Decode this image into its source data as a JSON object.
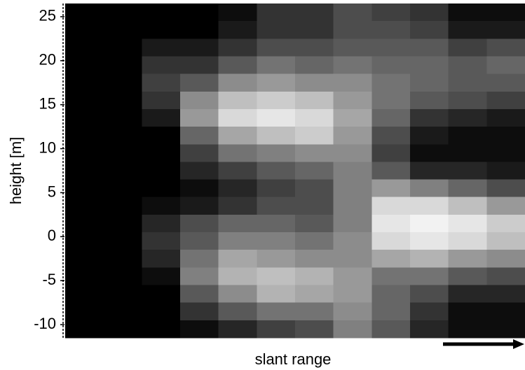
{
  "chart_data": {
    "type": "heatmap",
    "ylabel": "height [m]",
    "xlabel": "slant range",
    "colormap": "gray",
    "zlim": [
      0,
      1
    ],
    "ylim": [
      -11.5,
      26.5
    ],
    "yticks": [
      25,
      20,
      15,
      10,
      5,
      0,
      -5,
      -10
    ],
    "categories": [
      null,
      null,
      null,
      null,
      null,
      null,
      null,
      null,
      null,
      null,
      null,
      null
    ],
    "ybins": [
      26.5,
      24.5,
      22.5,
      20.5,
      18.5,
      16.5,
      14.5,
      12.5,
      10.5,
      8.5,
      6.5,
      4.5,
      2.5,
      0.5,
      -1.5,
      -3.5,
      -5.5,
      -7.5,
      -9.5,
      -11.5
    ],
    "z": [
      [
        0,
        0,
        0,
        0,
        0.05,
        0.2,
        0.2,
        0.3,
        0.25,
        0.2,
        0.05,
        0.05
      ],
      [
        0,
        0,
        0,
        0,
        0.1,
        0.2,
        0.2,
        0.3,
        0.3,
        0.25,
        0.1,
        0.1
      ],
      [
        0,
        0,
        0.1,
        0.1,
        0.2,
        0.3,
        0.3,
        0.35,
        0.35,
        0.35,
        0.25,
        0.3
      ],
      [
        0,
        0,
        0.2,
        0.2,
        0.35,
        0.45,
        0.4,
        0.45,
        0.4,
        0.4,
        0.35,
        0.4
      ],
      [
        0,
        0,
        0.25,
        0.35,
        0.55,
        0.6,
        0.55,
        0.55,
        0.45,
        0.4,
        0.35,
        0.35
      ],
      [
        0,
        0,
        0.2,
        0.55,
        0.75,
        0.8,
        0.75,
        0.6,
        0.45,
        0.35,
        0.3,
        0.25
      ],
      [
        0,
        0,
        0.1,
        0.6,
        0.85,
        0.9,
        0.85,
        0.65,
        0.4,
        0.2,
        0.15,
        0.1
      ],
      [
        0,
        0,
        0,
        0.4,
        0.65,
        0.75,
        0.8,
        0.6,
        0.3,
        0.1,
        0.05,
        0.05
      ],
      [
        0,
        0,
        0,
        0.25,
        0.45,
        0.5,
        0.55,
        0.55,
        0.25,
        0.05,
        0.05,
        0.05
      ],
      [
        0,
        0,
        0,
        0.15,
        0.25,
        0.35,
        0.4,
        0.5,
        0.35,
        0.15,
        0.15,
        0.1
      ],
      [
        0,
        0,
        0,
        0.05,
        0.15,
        0.25,
        0.3,
        0.5,
        0.6,
        0.5,
        0.4,
        0.3
      ],
      [
        0,
        0,
        0.05,
        0.1,
        0.2,
        0.3,
        0.3,
        0.5,
        0.85,
        0.85,
        0.75,
        0.6
      ],
      [
        0,
        0,
        0.15,
        0.3,
        0.4,
        0.4,
        0.35,
        0.5,
        0.9,
        0.95,
        0.9,
        0.8
      ],
      [
        0,
        0,
        0.2,
        0.35,
        0.5,
        0.5,
        0.45,
        0.55,
        0.85,
        0.9,
        0.85,
        0.75
      ],
      [
        0,
        0,
        0.15,
        0.45,
        0.65,
        0.6,
        0.55,
        0.55,
        0.65,
        0.7,
        0.6,
        0.55
      ],
      [
        0,
        0,
        0.05,
        0.5,
        0.7,
        0.75,
        0.7,
        0.6,
        0.45,
        0.45,
        0.35,
        0.3
      ],
      [
        0,
        0,
        0,
        0.35,
        0.55,
        0.7,
        0.65,
        0.6,
        0.4,
        0.3,
        0.15,
        0.15
      ],
      [
        0,
        0,
        0,
        0.2,
        0.35,
        0.45,
        0.45,
        0.55,
        0.4,
        0.2,
        0.05,
        0.05
      ],
      [
        0,
        0,
        0,
        0.05,
        0.15,
        0.25,
        0.3,
        0.5,
        0.35,
        0.15,
        0.05,
        0.05
      ]
    ]
  }
}
